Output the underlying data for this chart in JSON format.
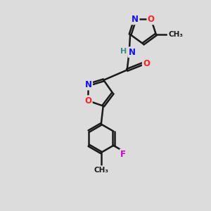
{
  "bg_color": "#dcdcdc",
  "bond_color": "#1a1a1a",
  "bond_width": 1.8,
  "atom_colors": {
    "N": "#1010ff",
    "O": "#ff2020",
    "F": "#cc00cc",
    "H": "#448888",
    "C": "#1a1a1a"
  },
  "font_size": 8.5
}
